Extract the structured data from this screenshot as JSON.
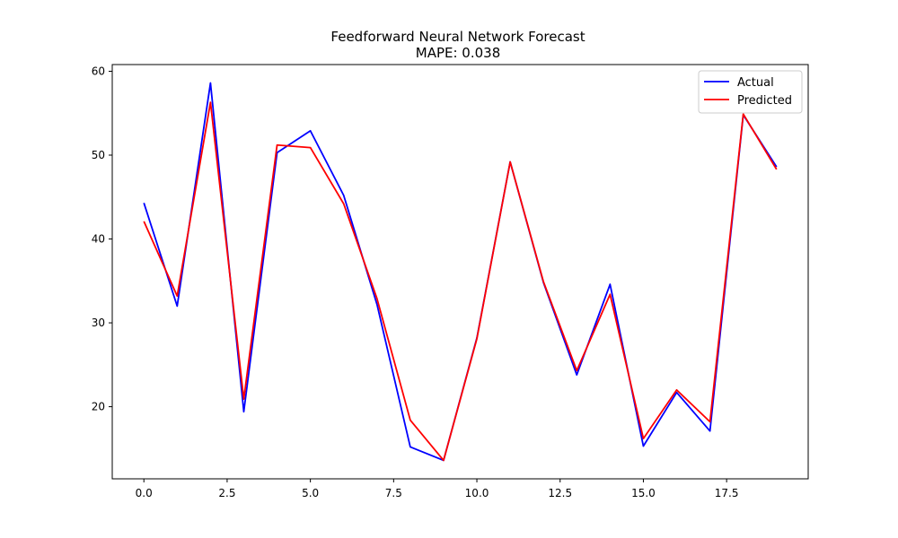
{
  "chart_data": {
    "type": "line",
    "title": "Feedforward Neural Network Forecast",
    "subtitle": "MAPE: 0.038",
    "xlabel": "",
    "ylabel": "",
    "xlim": [
      -0.95,
      19.95
    ],
    "ylim": [
      11.4,
      60.8
    ],
    "x": [
      0,
      1,
      2,
      3,
      4,
      5,
      6,
      7,
      8,
      9,
      10,
      11,
      12,
      13,
      14,
      15,
      16,
      17,
      18,
      19
    ],
    "xticks": [
      0.0,
      2.5,
      5.0,
      7.5,
      10.0,
      12.5,
      15.0,
      17.5
    ],
    "xtick_labels": [
      "0.0",
      "2.5",
      "5.0",
      "7.5",
      "10.0",
      "12.5",
      "15.0",
      "17.5"
    ],
    "yticks": [
      20,
      30,
      40,
      50,
      60
    ],
    "ytick_labels": [
      "20",
      "30",
      "40",
      "50",
      "60"
    ],
    "grid": false,
    "legend_position": "top-right",
    "series": [
      {
        "name": "Actual",
        "color": "#0000ff",
        "values": [
          44.3,
          32.0,
          58.6,
          19.4,
          50.3,
          52.9,
          45.2,
          32.2,
          15.2,
          13.6,
          28.2,
          49.2,
          34.8,
          23.8,
          34.6,
          15.3,
          21.7,
          17.1,
          54.8,
          48.6
        ]
      },
      {
        "name": "Predicted",
        "color": "#ff0000",
        "values": [
          42.1,
          33.2,
          56.3,
          20.9,
          51.2,
          50.9,
          44.2,
          32.9,
          18.4,
          13.6,
          28.1,
          49.2,
          34.9,
          24.3,
          33.4,
          16.2,
          22.0,
          18.2,
          54.9,
          48.3
        ]
      }
    ]
  }
}
